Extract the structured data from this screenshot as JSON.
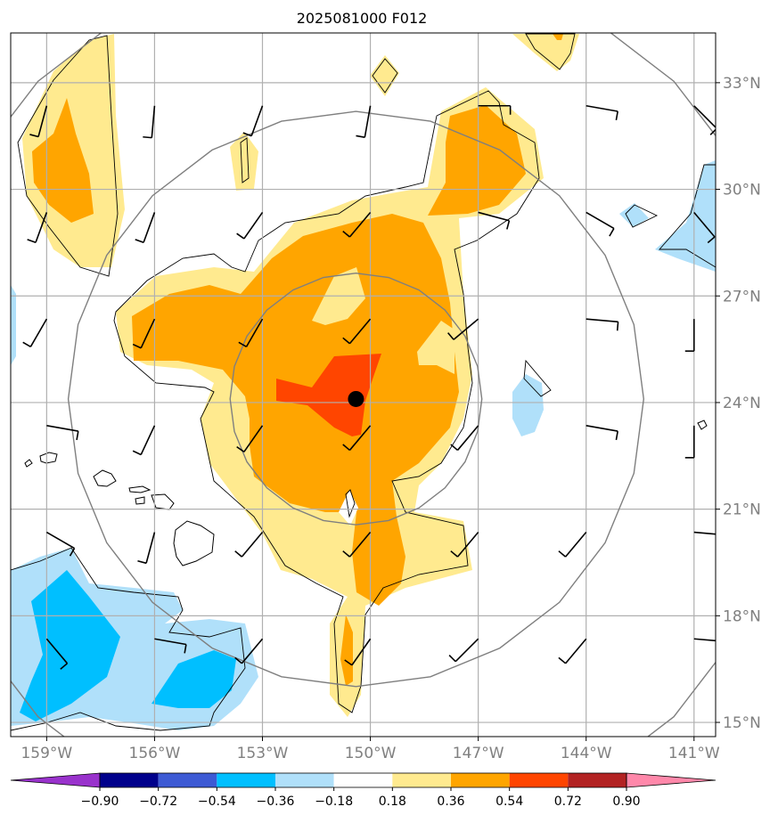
{
  "title": "2025081000 F012",
  "map": {
    "lon_range": [
      -160.0,
      -140.4
    ],
    "lat_range": [
      14.6,
      34.4
    ],
    "lon_ticks": [
      {
        "value": -159,
        "label": "159°W"
      },
      {
        "value": -156,
        "label": "156°W"
      },
      {
        "value": -153,
        "label": "153°W"
      },
      {
        "value": -150,
        "label": "150°W"
      },
      {
        "value": -147,
        "label": "147°W"
      },
      {
        "value": -144,
        "label": "144°W"
      },
      {
        "value": -141,
        "label": "141°W"
      }
    ],
    "lat_ticks": [
      {
        "value": 15,
        "label": "15°N"
      },
      {
        "value": 18,
        "label": "18°N"
      },
      {
        "value": 21,
        "label": "21°N"
      },
      {
        "value": 24,
        "label": "24°N"
      },
      {
        "value": 27,
        "label": "27°N"
      },
      {
        "value": 30,
        "label": "30°N"
      },
      {
        "value": 33,
        "label": "33°N"
      }
    ],
    "center_marker": {
      "lon": -150.4,
      "lat": 24.1
    },
    "gridlines": true,
    "range_rings_deg": [
      3.5,
      8,
      12.5
    ]
  },
  "colorbar": {
    "levels": [
      "−0.90",
      "−0.72",
      "−0.54",
      "−0.36",
      "−0.18",
      "0.18",
      "0.36",
      "0.54",
      "0.72",
      "0.90"
    ],
    "colors": [
      "#9932cc",
      "#00008b",
      "#3d5ad4",
      "#00bfff",
      "#b0e0fa",
      "#ffffff",
      "#ffea8f",
      "#ffa500",
      "#ff4500",
      "#b22222",
      "#ff88aa"
    ]
  }
}
